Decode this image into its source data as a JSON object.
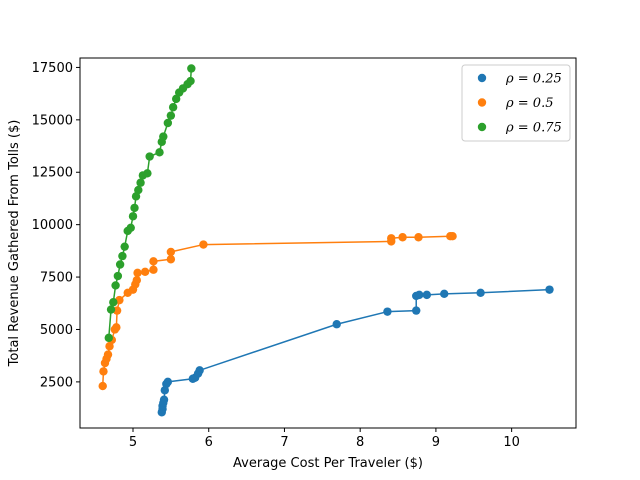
{
  "chart_data": {
    "type": "scatter",
    "title": "",
    "xlabel": "Average Cost Per Traveler ($)",
    "ylabel": "Total Revenue Gathered From Tolls ($)",
    "xlim": [
      4.3,
      10.85
    ],
    "ylim": [
      300,
      17950
    ],
    "xticks": [
      5,
      6,
      7,
      8,
      9,
      10
    ],
    "yticks": [
      2500,
      5000,
      7500,
      10000,
      12500,
      15000,
      17500
    ],
    "xtick_labels": [
      "5",
      "6",
      "7",
      "8",
      "9",
      "10"
    ],
    "ytick_labels": [
      "2500",
      "5000",
      "7500",
      "10000",
      "12500",
      "15000",
      "17500"
    ],
    "grid": false,
    "legend_position": "top-right",
    "series": [
      {
        "name": "ρ = 0.25",
        "legend_label": "ρ = 0.25",
        "color": "#1f77b4",
        "connected": true,
        "points": [
          [
            5.38,
            1050
          ],
          [
            5.39,
            1200
          ],
          [
            5.39,
            1350
          ],
          [
            5.4,
            1500
          ],
          [
            5.41,
            1650
          ],
          [
            5.42,
            2100
          ],
          [
            5.44,
            2400
          ],
          [
            5.46,
            2500
          ],
          [
            5.79,
            2650
          ],
          [
            5.82,
            2700
          ],
          [
            5.86,
            2900
          ],
          [
            5.88,
            3050
          ],
          [
            7.69,
            5250
          ],
          [
            8.36,
            5850
          ],
          [
            8.74,
            5900
          ],
          [
            8.74,
            6600
          ],
          [
            8.78,
            6650
          ],
          [
            8.88,
            6650
          ],
          [
            9.11,
            6700
          ],
          [
            9.59,
            6750
          ],
          [
            10.5,
            6900
          ]
        ]
      },
      {
        "name": "ρ = 0.5",
        "legend_label": "ρ = 0.5",
        "color": "#ff7f0e",
        "connected": true,
        "points": [
          [
            4.6,
            2300
          ],
          [
            4.61,
            3000
          ],
          [
            4.63,
            3400
          ],
          [
            4.65,
            3600
          ],
          [
            4.67,
            3800
          ],
          [
            4.69,
            4200
          ],
          [
            4.72,
            4500
          ],
          [
            4.76,
            5000
          ],
          [
            4.78,
            5100
          ],
          [
            4.79,
            5900
          ],
          [
            4.82,
            6400
          ],
          [
            4.93,
            6750
          ],
          [
            5.0,
            6900
          ],
          [
            5.03,
            7150
          ],
          [
            5.05,
            7350
          ],
          [
            5.06,
            7700
          ],
          [
            5.16,
            7750
          ],
          [
            5.27,
            7850
          ],
          [
            5.27,
            8250
          ],
          [
            5.5,
            8350
          ],
          [
            5.5,
            8700
          ],
          [
            5.93,
            9050
          ],
          [
            8.41,
            9200
          ],
          [
            8.41,
            9350
          ],
          [
            8.56,
            9400
          ],
          [
            8.77,
            9400
          ],
          [
            9.19,
            9450
          ],
          [
            9.22,
            9450
          ]
        ]
      },
      {
        "name": "ρ = 0.75",
        "legend_label": "ρ = 0.75",
        "color": "#2ca02c",
        "connected": true,
        "points": [
          [
            4.68,
            4600
          ],
          [
            4.71,
            5950
          ],
          [
            4.74,
            6300
          ],
          [
            4.77,
            7100
          ],
          [
            4.8,
            7550
          ],
          [
            4.83,
            8100
          ],
          [
            4.86,
            8500
          ],
          [
            4.89,
            8950
          ],
          [
            4.93,
            9700
          ],
          [
            4.97,
            9850
          ],
          [
            5.0,
            10400
          ],
          [
            5.02,
            10800
          ],
          [
            5.04,
            11350
          ],
          [
            5.07,
            11650
          ],
          [
            5.1,
            12000
          ],
          [
            5.13,
            12350
          ],
          [
            5.19,
            12450
          ],
          [
            5.22,
            13250
          ],
          [
            5.35,
            13450
          ],
          [
            5.38,
            13950
          ],
          [
            5.4,
            14200
          ],
          [
            5.46,
            14850
          ],
          [
            5.5,
            15200
          ],
          [
            5.53,
            15600
          ],
          [
            5.57,
            16000
          ],
          [
            5.61,
            16300
          ],
          [
            5.66,
            16500
          ],
          [
            5.72,
            16700
          ],
          [
            5.76,
            16850
          ],
          [
            5.77,
            17450
          ]
        ]
      }
    ]
  }
}
